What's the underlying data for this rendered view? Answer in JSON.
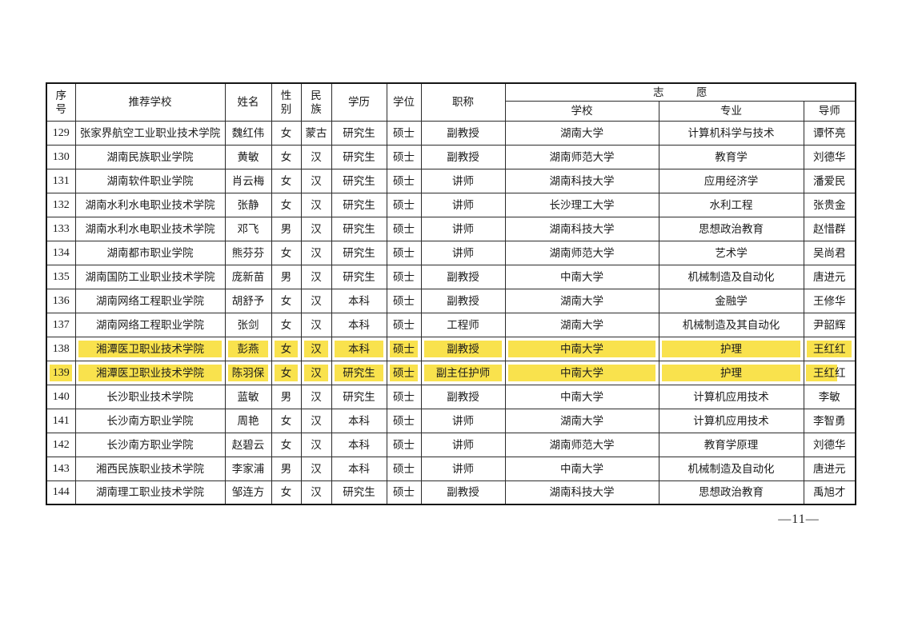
{
  "colors": {
    "highlight": "#F9E24D",
    "border": "#2B2B2B",
    "text": "#1B1B1B"
  },
  "page_number": "—11—",
  "table": {
    "headers": {
      "col_no": "序\n号",
      "col_school": "推荐学校",
      "col_name": "姓名",
      "col_gender": "性\n别",
      "col_ethnicity": "民\n族",
      "col_education": "学历",
      "col_degree": "学位",
      "col_title": "职称",
      "col_wish": "志　　　愿",
      "col_wish_school": "学校",
      "col_wish_major": "专业",
      "col_wish_mentor": "导师"
    },
    "rows": [
      {
        "no": "129",
        "school": "张家界航空工业职业技术学院",
        "name": "魏红伟",
        "gender": "女",
        "ethnicity": "蒙古",
        "education": "研究生",
        "degree": "硕士",
        "title": "副教授",
        "wish_school": "湖南大学",
        "wish_major": "计算机科学与技术",
        "wish_mentor": "谭怀亮",
        "highlight": "none"
      },
      {
        "no": "130",
        "school": "湖南民族职业学院",
        "name": "黄敏",
        "gender": "女",
        "ethnicity": "汉",
        "education": "研究生",
        "degree": "硕士",
        "title": "副教授",
        "wish_school": "湖南师范大学",
        "wish_major": "教育学",
        "wish_mentor": "刘德华",
        "highlight": "none"
      },
      {
        "no": "131",
        "school": "湖南软件职业学院",
        "name": "肖云梅",
        "gender": "女",
        "ethnicity": "汉",
        "education": "研究生",
        "degree": "硕士",
        "title": "讲师",
        "wish_school": "湖南科技大学",
        "wish_major": "应用经济学",
        "wish_mentor": "潘爱民",
        "highlight": "none"
      },
      {
        "no": "132",
        "school": "湖南水利水电职业技术学院",
        "name": "张静",
        "gender": "女",
        "ethnicity": "汉",
        "education": "研究生",
        "degree": "硕士",
        "title": "讲师",
        "wish_school": "长沙理工大学",
        "wish_major": "水利工程",
        "wish_mentor": "张贵金",
        "highlight": "none"
      },
      {
        "no": "133",
        "school": "湖南水利水电职业技术学院",
        "name": "邓飞",
        "gender": "男",
        "ethnicity": "汉",
        "education": "研究生",
        "degree": "硕士",
        "title": "讲师",
        "wish_school": "湖南科技大学",
        "wish_major": "思想政治教育",
        "wish_mentor": "赵惜群",
        "highlight": "none"
      },
      {
        "no": "134",
        "school": "湖南都市职业学院",
        "name": "熊芬芬",
        "gender": "女",
        "ethnicity": "汉",
        "education": "研究生",
        "degree": "硕士",
        "title": "讲师",
        "wish_school": "湖南师范大学",
        "wish_major": "艺术学",
        "wish_mentor": "吴尚君",
        "highlight": "none"
      },
      {
        "no": "135",
        "school": "湖南国防工业职业技术学院",
        "name": "庞新苗",
        "gender": "男",
        "ethnicity": "汉",
        "education": "研究生",
        "degree": "硕士",
        "title": "副教授",
        "wish_school": "中南大学",
        "wish_major": "机械制造及自动化",
        "wish_mentor": "唐进元",
        "highlight": "none"
      },
      {
        "no": "136",
        "school": "湖南网络工程职业学院",
        "name": "胡舒予",
        "gender": "女",
        "ethnicity": "汉",
        "education": "本科",
        "degree": "硕士",
        "title": "副教授",
        "wish_school": "湖南大学",
        "wish_major": "金融学",
        "wish_mentor": "王修华",
        "highlight": "none"
      },
      {
        "no": "137",
        "school": "湖南网络工程职业学院",
        "name": "张剑",
        "gender": "女",
        "ethnicity": "汉",
        "education": "本科",
        "degree": "硕士",
        "title": "工程师",
        "wish_school": "湖南大学",
        "wish_major": "机械制造及其自动化",
        "wish_mentor": "尹韶辉",
        "highlight": "none"
      },
      {
        "no": "138",
        "school": "湘潭医卫职业技术学院",
        "name": "彭燕",
        "gender": "女",
        "ethnicity": "汉",
        "education": "本科",
        "degree": "硕士",
        "title": "副教授",
        "wish_school": "中南大学",
        "wish_major": "护理",
        "wish_mentor": "王红红",
        "highlight": "cells"
      },
      {
        "no": "139",
        "school": "湘潭医卫职业技术学院",
        "name": "陈羽保",
        "gender": "女",
        "ethnicity": "汉",
        "education": "研究生",
        "degree": "硕士",
        "title": "副主任护师",
        "wish_school": "中南大学",
        "wish_major": "护理",
        "wish_mentor": "王红红",
        "highlight": "row"
      },
      {
        "no": "140",
        "school": "长沙职业技术学院",
        "name": "蓝敏",
        "gender": "男",
        "ethnicity": "汉",
        "education": "研究生",
        "degree": "硕士",
        "title": "副教授",
        "wish_school": "中南大学",
        "wish_major": "计算机应用技术",
        "wish_mentor": "李敏",
        "highlight": "none"
      },
      {
        "no": "141",
        "school": "长沙南方职业学院",
        "name": "周艳",
        "gender": "女",
        "ethnicity": "汉",
        "education": "本科",
        "degree": "硕士",
        "title": "讲师",
        "wish_school": "湖南大学",
        "wish_major": "计算机应用技术",
        "wish_mentor": "李智勇",
        "highlight": "none"
      },
      {
        "no": "142",
        "school": "长沙南方职业学院",
        "name": "赵碧云",
        "gender": "女",
        "ethnicity": "汉",
        "education": "本科",
        "degree": "硕士",
        "title": "讲师",
        "wish_school": "湖南师范大学",
        "wish_major": "教育学原理",
        "wish_mentor": "刘德华",
        "highlight": "none"
      },
      {
        "no": "143",
        "school": "湘西民族职业技术学院",
        "name": "李家浦",
        "gender": "男",
        "ethnicity": "汉",
        "education": "本科",
        "degree": "硕士",
        "title": "讲师",
        "wish_school": "中南大学",
        "wish_major": "机械制造及自动化",
        "wish_mentor": "唐进元",
        "highlight": "none"
      },
      {
        "no": "144",
        "school": "湖南理工职业技术学院",
        "name": "邹连方",
        "gender": "女",
        "ethnicity": "汉",
        "education": "研究生",
        "degree": "硕士",
        "title": "副教授",
        "wish_school": "湖南科技大学",
        "wish_major": "思想政治教育",
        "wish_mentor": "禹旭才",
        "highlight": "none"
      }
    ]
  }
}
